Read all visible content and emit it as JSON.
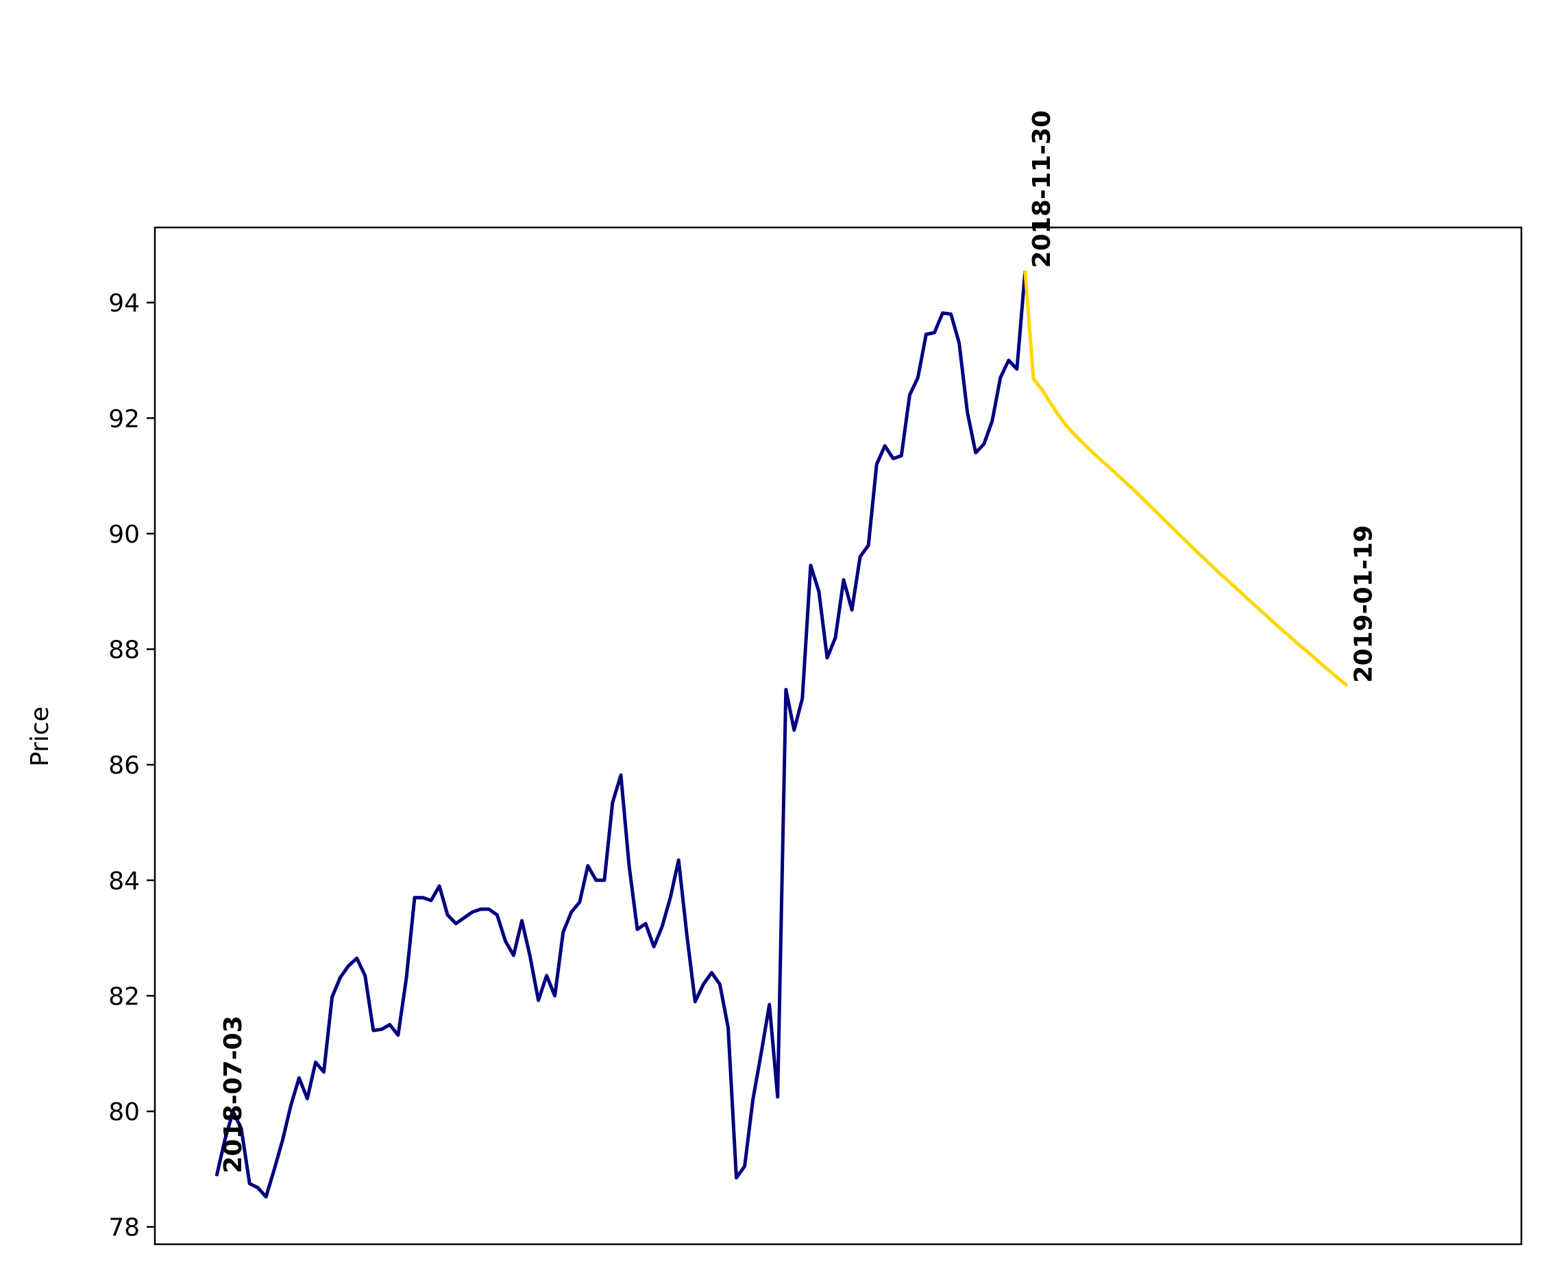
{
  "chart_data": {
    "type": "line",
    "title": "",
    "xlabel": "",
    "ylabel": "Price",
    "ylim": [
      77.7,
      95.3
    ],
    "yticks": [
      78,
      80,
      82,
      84,
      86,
      88,
      90,
      92,
      94
    ],
    "xticks_visible": false,
    "grid": false,
    "series": [
      {
        "color": "#00007f",
        "values": [
          78.88,
          79.5,
          80.0,
          79.7,
          78.75,
          78.68,
          78.52,
          79.0,
          79.5,
          80.1,
          80.58,
          80.22,
          80.85,
          80.68,
          81.98,
          82.32,
          82.52,
          82.65,
          82.35,
          81.4,
          81.42,
          81.5,
          81.32,
          82.3,
          83.7,
          83.7,
          83.65,
          83.9,
          83.4,
          83.25,
          83.35,
          83.45,
          83.5,
          83.5,
          83.4,
          82.95,
          82.7,
          83.3,
          82.68,
          81.92,
          82.35,
          82.0,
          83.1,
          83.45,
          83.62,
          84.25,
          84.0,
          84.0,
          85.35,
          85.82,
          84.25,
          83.15,
          83.25,
          82.85,
          83.2,
          83.7,
          84.35,
          83.05,
          81.9,
          82.2,
          82.4,
          82.2,
          81.45,
          78.85,
          79.05,
          80.2,
          81.0,
          81.85,
          80.25,
          87.3,
          86.6,
          87.15,
          89.45,
          89.0,
          87.85,
          88.2,
          89.2,
          88.68,
          89.6,
          89.8,
          91.2,
          91.52,
          91.3,
          91.35,
          92.4,
          92.7,
          93.45,
          93.48,
          93.82,
          93.8,
          93.3,
          92.1,
          91.4,
          91.55,
          91.95,
          92.7,
          93.0,
          92.85,
          94.55
        ]
      },
      {
        "color": "#ffd700",
        "values": [
          94.55,
          92.68,
          92.5,
          92.28,
          92.06,
          91.87,
          91.71,
          91.57,
          91.43,
          91.3,
          91.17,
          91.04,
          90.91,
          90.78,
          90.64,
          90.5,
          90.36,
          90.22,
          90.08,
          89.94,
          89.8,
          89.66,
          89.53,
          89.39,
          89.26,
          89.13,
          89.0,
          88.87,
          88.74,
          88.61,
          88.48,
          88.35,
          88.23,
          88.1,
          87.98,
          87.86,
          87.73,
          87.61,
          87.49,
          87.37
        ]
      }
    ],
    "annotations": [
      {
        "text": "2018-07-03",
        "value": 78.88
      },
      {
        "text": "2018-11-30",
        "value": 94.55
      },
      {
        "text": "2019-01-19",
        "value": 87.37
      }
    ]
  }
}
